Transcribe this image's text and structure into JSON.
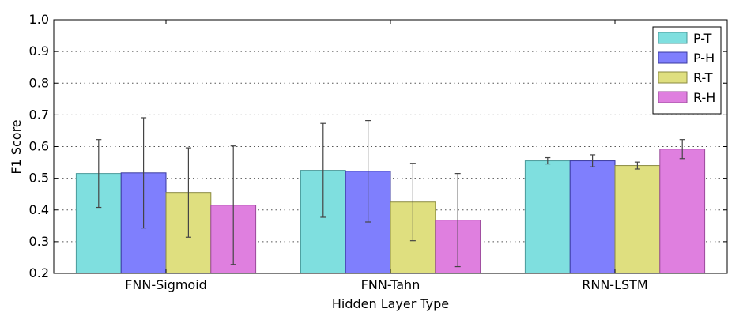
{
  "chart_data": {
    "type": "bar",
    "title": "",
    "xlabel": "Hidden Layer Type",
    "ylabel": "F1 Score",
    "ylim": [
      0.2,
      1.0
    ],
    "yticks": [
      "0.2",
      "0.3",
      "0.4",
      "0.5",
      "0.6",
      "0.7",
      "0.8",
      "0.9",
      "1.0"
    ],
    "grid": "horizontal dotted",
    "legend_position": "top-right",
    "categories": [
      "FNN-Sigmoid",
      "FNN-Tahn",
      "RNN-LSTM"
    ],
    "series": [
      {
        "name": "P-T",
        "color": "#7fdfdf",
        "edge": "#4a9a9a",
        "values": [
          0.515,
          0.525,
          0.555
        ],
        "errors": [
          0.107,
          0.148,
          0.01
        ]
      },
      {
        "name": "P-H",
        "color": "#7f7ffd",
        "edge": "#3a3aa0",
        "values": [
          0.517,
          0.522,
          0.555
        ],
        "errors": [
          0.174,
          0.16,
          0.019
        ]
      },
      {
        "name": "R-T",
        "color": "#dfdf7f",
        "edge": "#8a8a40",
        "values": [
          0.455,
          0.425,
          0.54
        ],
        "errors": [
          0.141,
          0.122,
          0.011
        ]
      },
      {
        "name": "R-H",
        "color": "#df7fdf",
        "edge": "#9a4a9a",
        "values": [
          0.415,
          0.368,
          0.592
        ],
        "errors": [
          0.187,
          0.147,
          0.03
        ]
      }
    ]
  }
}
